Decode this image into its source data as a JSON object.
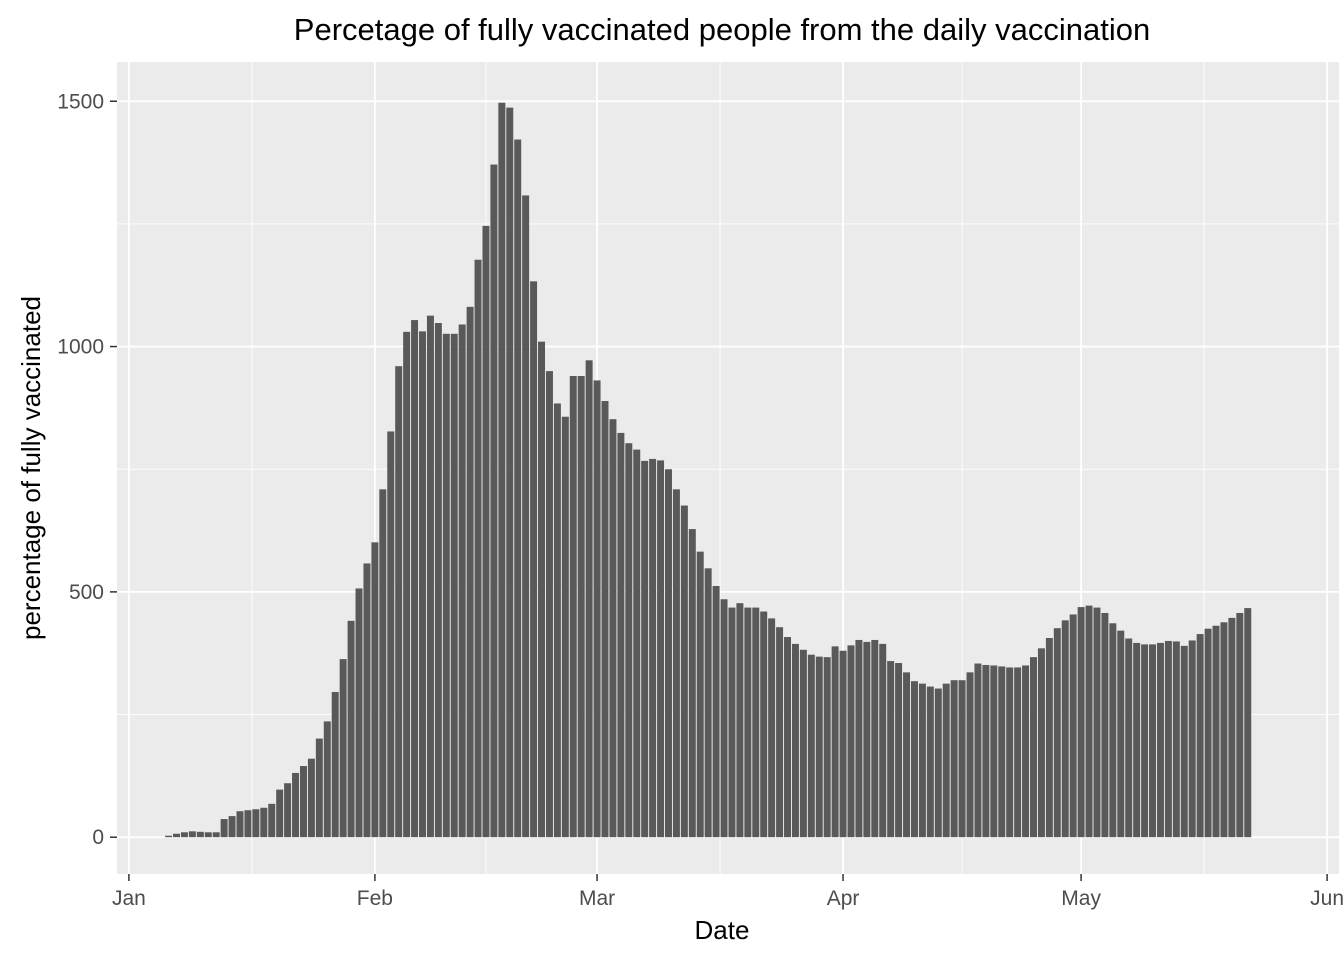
{
  "chart_data": {
    "type": "bar",
    "title": "Percetage of fully vaccinated people from the daily vaccination",
    "xlabel": "Date",
    "ylabel": "percentage of fully vaccinated",
    "ylim": [
      -75,
      1580
    ],
    "xlim_days": [
      -1.5,
      152.5
    ],
    "y_ticks": [
      0,
      500,
      1000,
      1500
    ],
    "x_ticks": [
      {
        "day": 0,
        "label": "Jan"
      },
      {
        "day": 31,
        "label": "Feb"
      },
      {
        "day": 59,
        "label": "Mar"
      },
      {
        "day": 90,
        "label": "Apr"
      },
      {
        "day": 120,
        "label": "May"
      },
      {
        "day": 151,
        "label": "Jun"
      }
    ],
    "x_minor_days": [
      15.5,
      45,
      74.5,
      105,
      135.5
    ],
    "grid": true,
    "panel_color": "#ebebeb",
    "bar_color": "#595959",
    "dates_start": "2021-01-06",
    "values": [
      3,
      7,
      10,
      12,
      11,
      10,
      10,
      37,
      43,
      53,
      55,
      57,
      60,
      68,
      97,
      110,
      131,
      145,
      160,
      201,
      236,
      296,
      363,
      441,
      507,
      558,
      601,
      709,
      827,
      960,
      1030,
      1054,
      1031,
      1063,
      1048,
      1026,
      1026,
      1045,
      1081,
      1177,
      1246,
      1371,
      1497,
      1487,
      1422,
      1308,
      1133,
      1010,
      950,
      884,
      857,
      940,
      940,
      972,
      931,
      889,
      852,
      824,
      803,
      790,
      767,
      771,
      768,
      750,
      709,
      676,
      628,
      582,
      548,
      512,
      485,
      468,
      477,
      468,
      468,
      460,
      446,
      428,
      408,
      394,
      382,
      372,
      368,
      367,
      389,
      380,
      391,
      402,
      398,
      402,
      394,
      359,
      355,
      336,
      318,
      313,
      307,
      303,
      313,
      320,
      320,
      336,
      354,
      351,
      350,
      348,
      346,
      346,
      350,
      367,
      385,
      406,
      426,
      442,
      454,
      469,
      472,
      468,
      457,
      436,
      421,
      405,
      396,
      393,
      393,
      396,
      400,
      399,
      390,
      401,
      414,
      425,
      431,
      438,
      447,
      457,
      467
    ]
  }
}
